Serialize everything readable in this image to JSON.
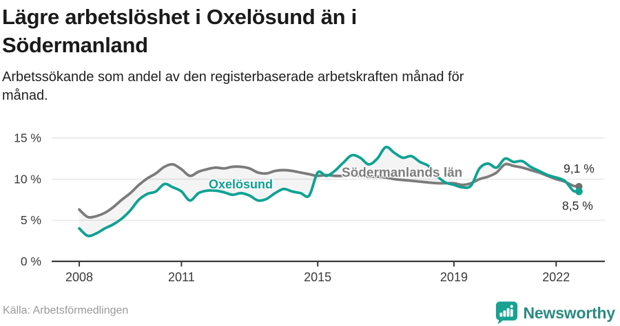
{
  "page": {
    "title_lines": [
      "Lägre arbetslöshet i Oxelösund än i",
      "Södermanland"
    ],
    "subtitle_lines": [
      "Arbetssökande som andel av den registerbaserade arbetskraften månad för",
      "månad."
    ]
  },
  "chart": {
    "series_labels": {
      "oxelosund": "Oxelösund",
      "sodermanland": "Södermanlands län"
    },
    "end_labels": {
      "sodermanland": "9,1 %",
      "oxelosund": "8,5 %"
    }
  },
  "footer": {
    "source": "Källa: Arbetsförmedlingen",
    "brand": "Newsworthy"
  },
  "colors": {
    "oxelosund_line": "#0ea293",
    "sodermanland_line": "#7b7b7b",
    "between_area": "rgba(0,0,0,0.045)",
    "gridline": "#e4e4e4",
    "axis": "#3a3a3a",
    "end_dot_gray": "#6f6f6f",
    "brand_teal": "#17a293"
  },
  "chart_data": {
    "type": "line",
    "title": "Lägre arbetslöshet i Oxelösund än i Södermanland",
    "subtitle": "Arbetssökande som andel av den registerbaserade arbetskraften månad för månad.",
    "x_unit": "decimal_year",
    "xlim": [
      2007.19,
      2023.43
    ],
    "ylim": [
      0,
      15.5
    ],
    "grid": true,
    "x": [
      2008,
      2008.25,
      2008.5,
      2008.75,
      2009,
      2009.25,
      2009.5,
      2009.75,
      2010,
      2010.25,
      2010.5,
      2010.75,
      2011,
      2011.25,
      2011.5,
      2011.75,
      2012,
      2012.25,
      2012.5,
      2012.75,
      2013,
      2013.25,
      2013.5,
      2013.75,
      2014,
      2014.25,
      2014.5,
      2014.75,
      2015,
      2015.25,
      2015.5,
      2015.75,
      2016,
      2016.25,
      2016.5,
      2016.75,
      2017,
      2017.25,
      2017.5,
      2017.75,
      2018,
      2018.25,
      2018.5,
      2018.75,
      2019,
      2019.25,
      2019.5,
      2019.75,
      2020,
      2020.25,
      2020.5,
      2020.75,
      2021,
      2021.25,
      2021.5,
      2021.75,
      2022,
      2022.25,
      2022.5,
      2022.67
    ],
    "series": [
      {
        "name": "Södermanlands län",
        "color": "#7b7b7b",
        "last_value_label": "9,1 %",
        "values": [
          6.3,
          5.4,
          5.5,
          5.9,
          6.6,
          7.5,
          8.3,
          9.3,
          10.1,
          10.7,
          11.5,
          11.8,
          11.2,
          10.4,
          10.9,
          11.2,
          11.4,
          11.3,
          11.5,
          11.5,
          11.3,
          10.8,
          10.7,
          11.0,
          11.1,
          11.0,
          10.8,
          10.6,
          10.4,
          10.5,
          10.4,
          10.4,
          10.5,
          10.4,
          10.3,
          10.3,
          10.2,
          10.0,
          9.9,
          9.8,
          9.7,
          9.6,
          9.5,
          9.5,
          9.5,
          9.3,
          9.5,
          10.0,
          10.3,
          10.8,
          11.8,
          11.6,
          11.4,
          11.1,
          10.8,
          10.4,
          10.0,
          9.7,
          9.2,
          9.1
        ]
      },
      {
        "name": "Oxelösund",
        "color": "#0ea293",
        "last_value_label": "8,5 %",
        "values": [
          4.0,
          3.1,
          3.4,
          4.0,
          4.5,
          5.2,
          6.2,
          7.5,
          8.2,
          8.5,
          9.4,
          9.0,
          8.5,
          7.4,
          8.3,
          8.6,
          8.6,
          8.4,
          8.1,
          8.3,
          8.0,
          7.4,
          7.6,
          8.3,
          8.8,
          8.5,
          8.3,
          8.0,
          10.8,
          10.4,
          11.0,
          12.0,
          12.9,
          12.6,
          11.8,
          12.5,
          13.9,
          13.2,
          12.6,
          12.8,
          12.1,
          11.6,
          10.4,
          9.6,
          9.3,
          9.0,
          9.2,
          11.3,
          11.9,
          11.4,
          12.5,
          12.1,
          12.2,
          11.5,
          11.0,
          10.5,
          10.2,
          9.8,
          8.6,
          8.5
        ]
      }
    ],
    "yticks": {
      "values": [
        0,
        5,
        10,
        15
      ],
      "labels": [
        "0 %",
        "5 %",
        "10 %",
        "15 %"
      ]
    },
    "xticks": {
      "values": [
        2008,
        2011,
        2015,
        2019,
        2022
      ],
      "labels": [
        "2008",
        "2011",
        "2015",
        "2019",
        "2022"
      ]
    },
    "legend_position": "inline-labels",
    "end_dots": true
  }
}
